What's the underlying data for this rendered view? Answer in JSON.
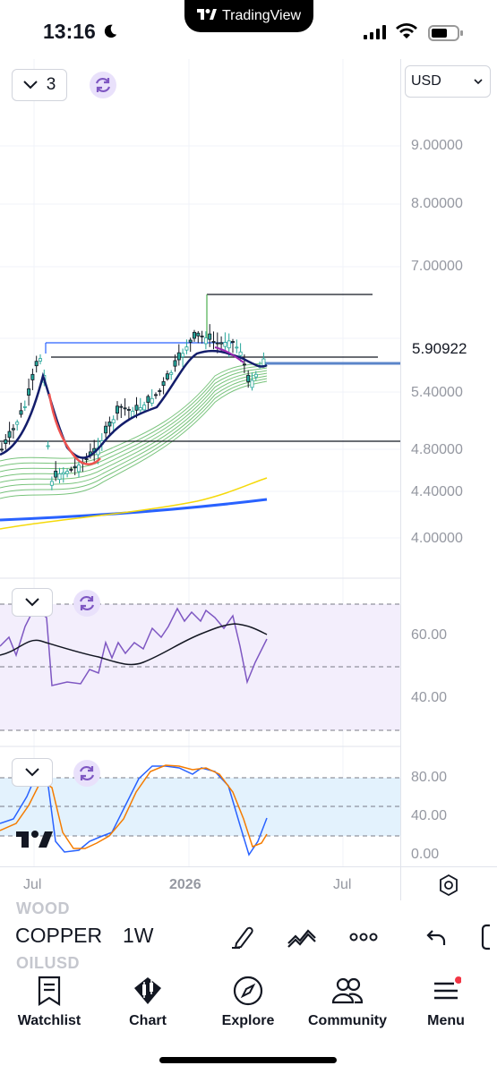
{
  "status_bar": {
    "time": "13:16",
    "pill_label": "TradingView",
    "icons": [
      "moon-icon",
      "signal-icon",
      "wifi-icon",
      "battery-icon"
    ]
  },
  "chart": {
    "interval_value": "3",
    "currency": "USD",
    "last_price": "5.90922",
    "price_axis": [
      "9.00000",
      "8.00000",
      "7.00000",
      "5.40000",
      "4.80000",
      "4.40000",
      "4.00000"
    ],
    "rsi_axis": [
      "60.00",
      "40.00"
    ],
    "stoch_axis": [
      "80.00",
      "40.00",
      "0.00"
    ],
    "time_axis": [
      "Jul",
      "2026",
      "Jul"
    ],
    "colors": {
      "ma_blue": "#2962ff",
      "ma_yellow": "#f5d90a",
      "ribbon_green": "#4caf50",
      "ma_navy": "#131d6b",
      "rsi_purple": "#7e57c2",
      "rsi_band": "#f3eefc",
      "stoch_band": "#e3f2fd",
      "stoch_blue": "#2962ff",
      "stoch_orange": "#f57c00"
    }
  },
  "chart_data": {
    "type": "line",
    "candles_count": 70,
    "price_range": [
      4.0,
      9.0
    ],
    "ma_slow": {
      "start": 4.17,
      "end": 4.35
    },
    "ma_mid": {
      "start": 4.0,
      "end": 4.5
    },
    "horizontal_levels": [
      6.55,
      5.83,
      4.86,
      5.74,
      5.95
    ]
  },
  "toolbar": {
    "ghost_symbols": [
      "WOOD",
      "OILUSD"
    ],
    "symbol": "COPPER",
    "resolution": "1W"
  },
  "nav": {
    "items": [
      {
        "label": "Watchlist",
        "icon": "watchlist-icon"
      },
      {
        "label": "Chart",
        "icon": "chart-icon"
      },
      {
        "label": "Explore",
        "icon": "compass-icon"
      },
      {
        "label": "Community",
        "icon": "community-icon"
      },
      {
        "label": "Menu",
        "icon": "menu-icon"
      }
    ]
  }
}
